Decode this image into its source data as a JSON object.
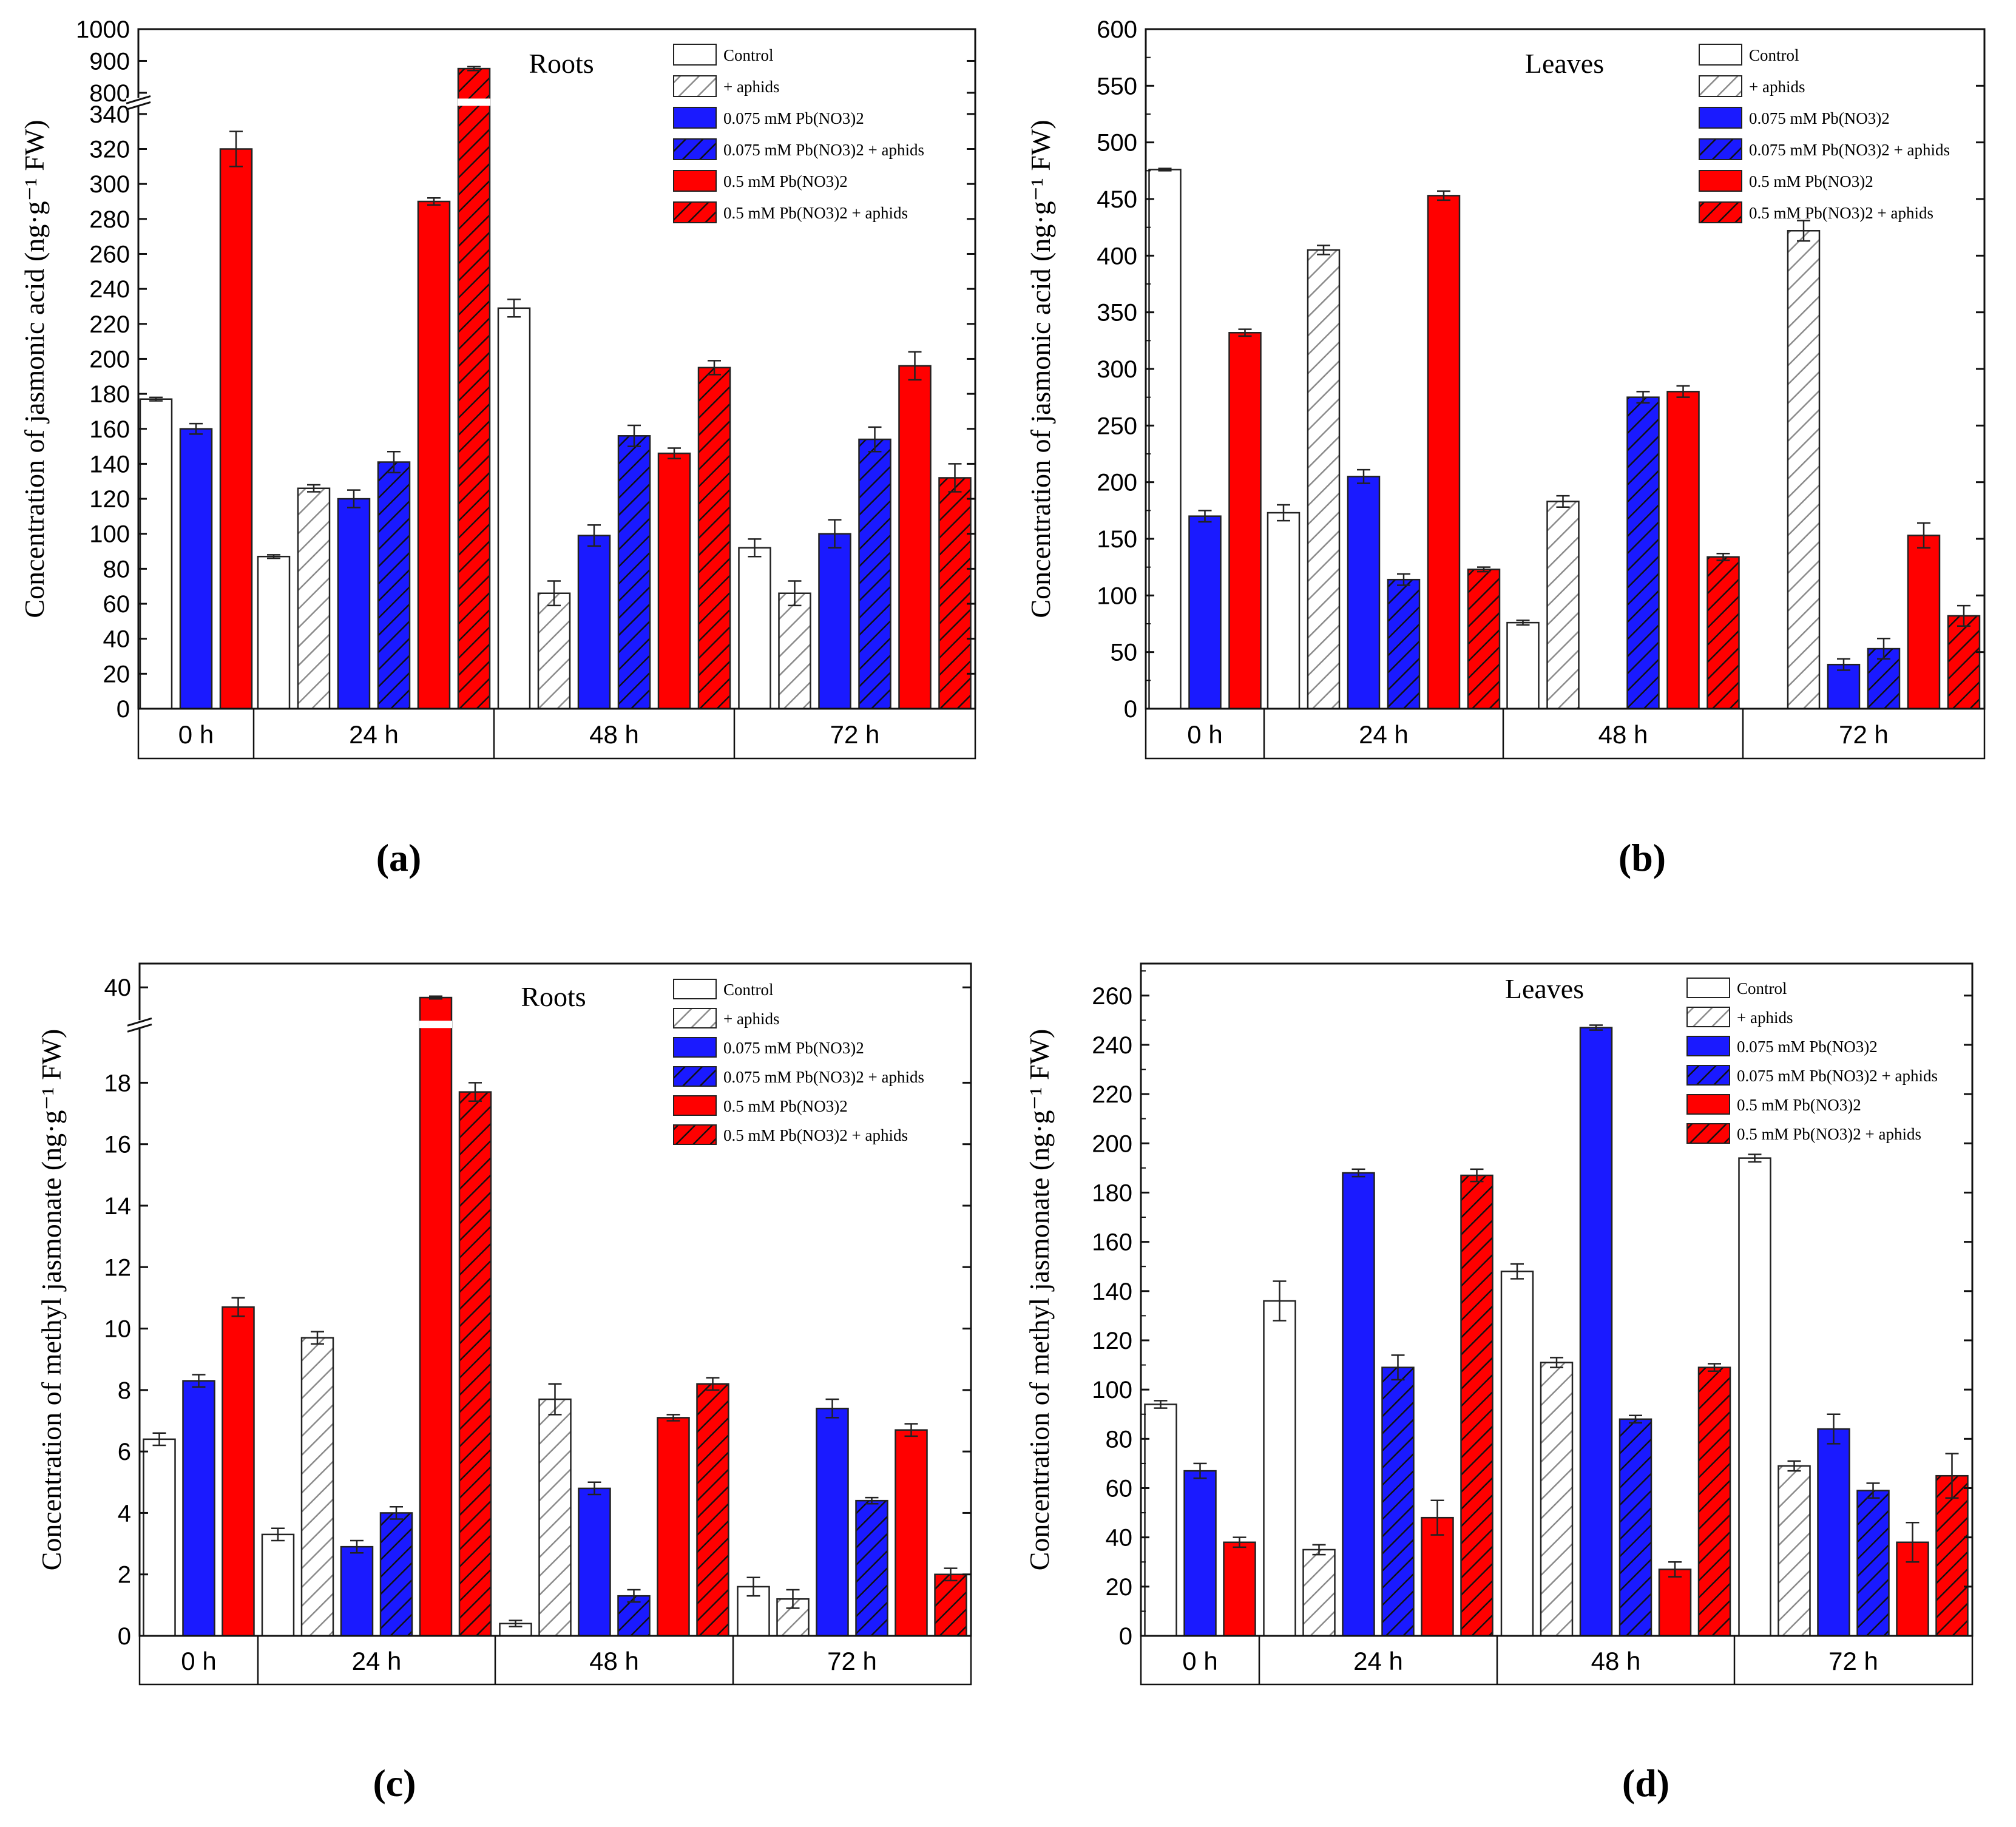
{
  "styles": {
    "white": "#ffffff",
    "blue": "#1a1aff",
    "red": "#ff0000",
    "gray_hatch": "#8a8a8a",
    "dark_hatch": "#111111",
    "legend_blue": "#1a1aff",
    "legend_red": "#ff0000"
  },
  "legend": [
    {
      "label": "Control",
      "style": "white"
    },
    {
      "label": "+ aphids",
      "style": "hatch_white"
    },
    {
      "label": "0.075 mM Pb(NO3)2",
      "style": "blue"
    },
    {
      "label": "0.075 mM Pb(NO3)2 + aphids",
      "style": "hatch_blue"
    },
    {
      "label": "0.5 mM Pb(NO3)2",
      "style": "red"
    },
    {
      "label": "0.5 mM Pb(NO3)2 + aphids",
      "style": "hatch_red"
    }
  ],
  "chart_data": [
    {
      "panel": "(a)",
      "type": "bar",
      "title": "Roots",
      "ylabel": "Concentration of jasmonic acid (ng·g⁻¹ FW)",
      "groups": [
        "0 h",
        "24 h",
        "48 h",
        "72 h"
      ],
      "y_ticks_lower": [
        0,
        20,
        40,
        60,
        80,
        100,
        120,
        140,
        160,
        180,
        200,
        220,
        240,
        260,
        280,
        300,
        320,
        340
      ],
      "y_ticks_upper": [
        800,
        900,
        1000
      ],
      "axis_break": {
        "lower_max": 345,
        "upper_min": 780,
        "upper_max": 1000
      },
      "bars": [
        {
          "group": "0 h",
          "series": "Control",
          "value": 177,
          "error": 1
        },
        {
          "group": "0 h",
          "series": "0.075 mM Pb(NO3)2",
          "value": 160,
          "error": 3
        },
        {
          "group": "0 h",
          "series": "0.5 mM Pb(NO3)2",
          "value": 320,
          "error": 10
        },
        {
          "group": "24 h",
          "series": "Control",
          "value": 87,
          "error": 1
        },
        {
          "group": "24 h",
          "series": "+ aphids",
          "value": 126,
          "error": 2
        },
        {
          "group": "24 h",
          "series": "0.075 mM Pb(NO3)2",
          "value": 120,
          "error": 5
        },
        {
          "group": "24 h",
          "series": "0.075 mM Pb(NO3)2 + aphids",
          "value": 141,
          "error": 6
        },
        {
          "group": "24 h",
          "series": "0.5 mM Pb(NO3)2",
          "value": 290,
          "error": 2
        },
        {
          "group": "24 h",
          "series": "0.5 mM Pb(NO3)2 + aphids",
          "value": 876,
          "error": 6
        },
        {
          "group": "48 h",
          "series": "Control",
          "value": 229,
          "error": 5
        },
        {
          "group": "48 h",
          "series": "+ aphids",
          "value": 66,
          "error": 7
        },
        {
          "group": "48 h",
          "series": "0.075 mM Pb(NO3)2",
          "value": 99,
          "error": 6
        },
        {
          "group": "48 h",
          "series": "0.075 mM Pb(NO3)2 + aphids",
          "value": 156,
          "error": 6
        },
        {
          "group": "48 h",
          "series": "0.5 mM Pb(NO3)2",
          "value": 146,
          "error": 3
        },
        {
          "group": "48 h",
          "series": "0.5 mM Pb(NO3)2 + aphids",
          "value": 195,
          "error": 4
        },
        {
          "group": "72 h",
          "series": "Control",
          "value": 92,
          "error": 5
        },
        {
          "group": "72 h",
          "series": "+ aphids",
          "value": 66,
          "error": 7
        },
        {
          "group": "72 h",
          "series": "0.075 mM Pb(NO3)2",
          "value": 100,
          "error": 8
        },
        {
          "group": "72 h",
          "series": "0.075 mM Pb(NO3)2 + aphids",
          "value": 154,
          "error": 7
        },
        {
          "group": "72 h",
          "series": "0.5 mM Pb(NO3)2",
          "value": 196,
          "error": 8
        },
        {
          "group": "72 h",
          "series": "0.5 mM Pb(NO3)2 + aphids",
          "value": 132,
          "error": 8
        }
      ]
    },
    {
      "panel": "(b)",
      "type": "bar",
      "title": "Leaves",
      "ylabel": "Concentration of jasmonic acid (ng·g⁻¹ FW)",
      "groups": [
        "0 h",
        "24 h",
        "48 h",
        "72 h"
      ],
      "y_ticks": [
        0,
        50,
        100,
        150,
        200,
        250,
        300,
        350,
        400,
        450,
        500,
        550,
        600
      ],
      "ylim": [
        0,
        600
      ],
      "bars": [
        {
          "group": "0 h",
          "series": "Control",
          "value": 476,
          "error": 1
        },
        {
          "group": "0 h",
          "series": "0.075 mM Pb(NO3)2",
          "value": 170,
          "error": 5
        },
        {
          "group": "0 h",
          "series": "0.5 mM Pb(NO3)2",
          "value": 332,
          "error": 3
        },
        {
          "group": "24 h",
          "series": "Control",
          "value": 173,
          "error": 7
        },
        {
          "group": "24 h",
          "series": "+ aphids",
          "value": 405,
          "error": 4
        },
        {
          "group": "24 h",
          "series": "0.075 mM Pb(NO3)2",
          "value": 205,
          "error": 6
        },
        {
          "group": "24 h",
          "series": "0.075 mM Pb(NO3)2 + aphids",
          "value": 114,
          "error": 5
        },
        {
          "group": "24 h",
          "series": "0.5 mM Pb(NO3)2",
          "value": 453,
          "error": 4
        },
        {
          "group": "24 h",
          "series": "0.5 mM Pb(NO3)2 + aphids",
          "value": 123,
          "error": 2
        },
        {
          "group": "48 h",
          "series": "Control",
          "value": 76,
          "error": 2
        },
        {
          "group": "48 h",
          "series": "+ aphids",
          "value": 183,
          "error": 5
        },
        {
          "group": "48 h",
          "series": "0.075 mM Pb(NO3)2",
          "value": 0,
          "error": 0
        },
        {
          "group": "48 h",
          "series": "0.075 mM Pb(NO3)2 + aphids",
          "value": 275,
          "error": 5
        },
        {
          "group": "48 h",
          "series": "0.5 mM Pb(NO3)2",
          "value": 280,
          "error": 5
        },
        {
          "group": "48 h",
          "series": "0.5 mM Pb(NO3)2 + aphids",
          "value": 134,
          "error": 3
        },
        {
          "group": "72 h",
          "series": "Control",
          "value": 0,
          "error": 0
        },
        {
          "group": "72 h",
          "series": "+ aphids",
          "value": 422,
          "error": 9
        },
        {
          "group": "72 h",
          "series": "0.075 mM Pb(NO3)2",
          "value": 39,
          "error": 5
        },
        {
          "group": "72 h",
          "series": "0.075 mM Pb(NO3)2 + aphids",
          "value": 53,
          "error": 9
        },
        {
          "group": "72 h",
          "series": "0.5 mM Pb(NO3)2",
          "value": 153,
          "error": 11
        },
        {
          "group": "72 h",
          "series": "0.5 mM Pb(NO3)2 + aphids",
          "value": 82,
          "error": 9
        }
      ]
    },
    {
      "panel": "(c)",
      "type": "bar",
      "title": "Roots",
      "ylabel": "Concentration of methyl jasmonate (ng·g⁻¹ FW)",
      "groups": [
        "0 h",
        "24 h",
        "48 h",
        "72 h"
      ],
      "y_ticks_lower": [
        0,
        2,
        4,
        6,
        8,
        10,
        12,
        14,
        16,
        18
      ],
      "y_ticks_upper": [
        40
      ],
      "axis_break": {
        "lower_max": 19.8,
        "upper_min": 35,
        "upper_max": 43.5
      },
      "bars": [
        {
          "group": "0 h",
          "series": "Control",
          "value": 6.4,
          "error": 0.2
        },
        {
          "group": "0 h",
          "series": "0.075 mM Pb(NO3)2",
          "value": 8.3,
          "error": 0.2
        },
        {
          "group": "0 h",
          "series": "0.5 mM Pb(NO3)2",
          "value": 10.7,
          "error": 0.3
        },
        {
          "group": "24 h",
          "series": "Control",
          "value": 3.3,
          "error": 0.2
        },
        {
          "group": "24 h",
          "series": "+ aphids",
          "value": 9.7,
          "error": 0.2
        },
        {
          "group": "24 h",
          "series": "0.075 mM Pb(NO3)2",
          "value": 2.9,
          "error": 0.2
        },
        {
          "group": "24 h",
          "series": "0.075 mM Pb(NO3)2 + aphids",
          "value": 4.0,
          "error": 0.2
        },
        {
          "group": "24 h",
          "series": "0.5 mM Pb(NO3)2",
          "value": 38.5,
          "error": 0.2
        },
        {
          "group": "24 h",
          "series": "0.5 mM Pb(NO3)2 + aphids",
          "value": 17.7,
          "error": 0.3
        },
        {
          "group": "48 h",
          "series": "Control",
          "value": 0.4,
          "error": 0.1
        },
        {
          "group": "48 h",
          "series": "+ aphids",
          "value": 7.7,
          "error": 0.5
        },
        {
          "group": "48 h",
          "series": "0.075 mM Pb(NO3)2",
          "value": 4.8,
          "error": 0.2
        },
        {
          "group": "48 h",
          "series": "0.075 mM Pb(NO3)2 + aphids",
          "value": 1.3,
          "error": 0.2
        },
        {
          "group": "48 h",
          "series": "0.5 mM Pb(NO3)2",
          "value": 7.1,
          "error": 0.1
        },
        {
          "group": "48 h",
          "series": "0.5 mM Pb(NO3)2 + aphids",
          "value": 8.2,
          "error": 0.2
        },
        {
          "group": "72 h",
          "series": "Control",
          "value": 1.6,
          "error": 0.3
        },
        {
          "group": "72 h",
          "series": "+ aphids",
          "value": 1.2,
          "error": 0.3
        },
        {
          "group": "72 h",
          "series": "0.075 mM Pb(NO3)2",
          "value": 7.4,
          "error": 0.3
        },
        {
          "group": "72 h",
          "series": "0.075 mM Pb(NO3)2 + aphids",
          "value": 4.4,
          "error": 0.1
        },
        {
          "group": "72 h",
          "series": "0.5 mM Pb(NO3)2",
          "value": 6.7,
          "error": 0.2
        },
        {
          "group": "72 h",
          "series": "0.5 mM Pb(NO3)2 + aphids",
          "value": 2.0,
          "error": 0.2
        }
      ]
    },
    {
      "panel": "(d)",
      "type": "bar",
      "title": "Leaves",
      "ylabel": "Concentration of methyl jasmonate (ng·g⁻¹ FW)",
      "groups": [
        "0 h",
        "24 h",
        "48 h",
        "72 h"
      ],
      "y_ticks": [
        0,
        20,
        40,
        60,
        80,
        100,
        120,
        140,
        160,
        180,
        200,
        220,
        240,
        260
      ],
      "ylim": [
        0,
        273
      ],
      "bars": [
        {
          "group": "0 h",
          "series": "Control",
          "value": 94,
          "error": 1.5
        },
        {
          "group": "0 h",
          "series": "0.075 mM Pb(NO3)2",
          "value": 67,
          "error": 3
        },
        {
          "group": "0 h",
          "series": "0.5 mM Pb(NO3)2",
          "value": 38,
          "error": 2
        },
        {
          "group": "24 h",
          "series": "Control",
          "value": 136,
          "error": 8
        },
        {
          "group": "24 h",
          "series": "+ aphids",
          "value": 35,
          "error": 2
        },
        {
          "group": "24 h",
          "series": "0.075 mM Pb(NO3)2",
          "value": 188,
          "error": 1.5
        },
        {
          "group": "24 h",
          "series": "0.075 mM Pb(NO3)2 + aphids",
          "value": 109,
          "error": 5
        },
        {
          "group": "24 h",
          "series": "0.5 mM Pb(NO3)2",
          "value": 48,
          "error": 7
        },
        {
          "group": "24 h",
          "series": "0.5 mM Pb(NO3)2 + aphids",
          "value": 187,
          "error": 2.5
        },
        {
          "group": "48 h",
          "series": "Control",
          "value": 148,
          "error": 3
        },
        {
          "group": "48 h",
          "series": "+ aphids",
          "value": 111,
          "error": 2
        },
        {
          "group": "48 h",
          "series": "0.075 mM Pb(NO3)2",
          "value": 247,
          "error": 1
        },
        {
          "group": "48 h",
          "series": "0.075 mM Pb(NO3)2 + aphids",
          "value": 88,
          "error": 1.5
        },
        {
          "group": "48 h",
          "series": "0.5 mM Pb(NO3)2",
          "value": 27,
          "error": 3
        },
        {
          "group": "48 h",
          "series": "0.5 mM Pb(NO3)2 + aphids",
          "value": 109,
          "error": 1.5
        },
        {
          "group": "72 h",
          "series": "Control",
          "value": 194,
          "error": 1.5
        },
        {
          "group": "72 h",
          "series": "+ aphids",
          "value": 69,
          "error": 2
        },
        {
          "group": "72 h",
          "series": "0.075 mM Pb(NO3)2",
          "value": 84,
          "error": 6
        },
        {
          "group": "72 h",
          "series": "0.075 mM Pb(NO3)2 + aphids",
          "value": 59,
          "error": 3
        },
        {
          "group": "72 h",
          "series": "0.5 mM Pb(NO3)2",
          "value": 38,
          "error": 8
        },
        {
          "group": "72 h",
          "series": "0.5 mM Pb(NO3)2 + aphids",
          "value": 65,
          "error": 9
        }
      ]
    }
  ]
}
